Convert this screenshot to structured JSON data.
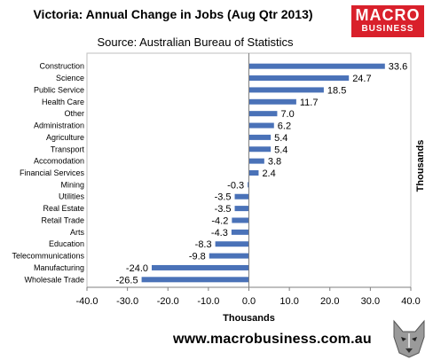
{
  "header": {
    "title": "Victoria: Annual Change in Jobs (Aug Qtr 2013)",
    "subtitle": "Source: Australian Bureau of Statistics",
    "logo_line1": "MACRO",
    "logo_line2": "BUSINESS",
    "logo_color": "#d9202b"
  },
  "footer": {
    "url": "www.macrobusiness.com.au"
  },
  "chart_data": {
    "type": "bar",
    "orientation": "horizontal",
    "categories": [
      "Construction",
      "Science",
      "Public Service",
      "Health Care",
      "Other",
      "Administration",
      "Agriculture",
      "Transport",
      "Accomodation",
      "Financial Services",
      "Mining",
      "Utilities",
      "Real Estate",
      "Retail Trade",
      "Arts",
      "Education",
      "Telecommunications",
      "Manufacturing",
      "Wholesale Trade"
    ],
    "values": [
      33.6,
      24.7,
      18.5,
      11.7,
      7.0,
      6.2,
      5.4,
      5.4,
      3.8,
      2.4,
      -0.3,
      -3.5,
      -3.5,
      -4.2,
      -4.3,
      -8.3,
      -9.8,
      -24.0,
      -26.5
    ],
    "value_labels": [
      "33.6",
      "24.7",
      "18.5",
      "11.7",
      "7.0",
      "6.2",
      "5.4",
      "5.4",
      "3.8",
      "2.4",
      "-0.3",
      "-3.5",
      "-3.5",
      "-4.2",
      "-4.3",
      "-8.3",
      "-9.8",
      "-24.0",
      "-26.5"
    ],
    "title": "Victoria: Annual Change in Jobs (Aug Qtr 2013)",
    "xlabel": "Thousands",
    "ylabel": "Thousands",
    "xlim": [
      -40,
      40
    ],
    "xticks": [
      -40,
      -30,
      -20,
      -10,
      0,
      10,
      20,
      30,
      40
    ],
    "xtick_labels": [
      "-40.0",
      "-30.0",
      "-20.0",
      "-10.0",
      "0.0",
      "10.0",
      "20.0",
      "30.0",
      "40.0"
    ],
    "grid": false,
    "bar_color": "#4a72b8"
  }
}
